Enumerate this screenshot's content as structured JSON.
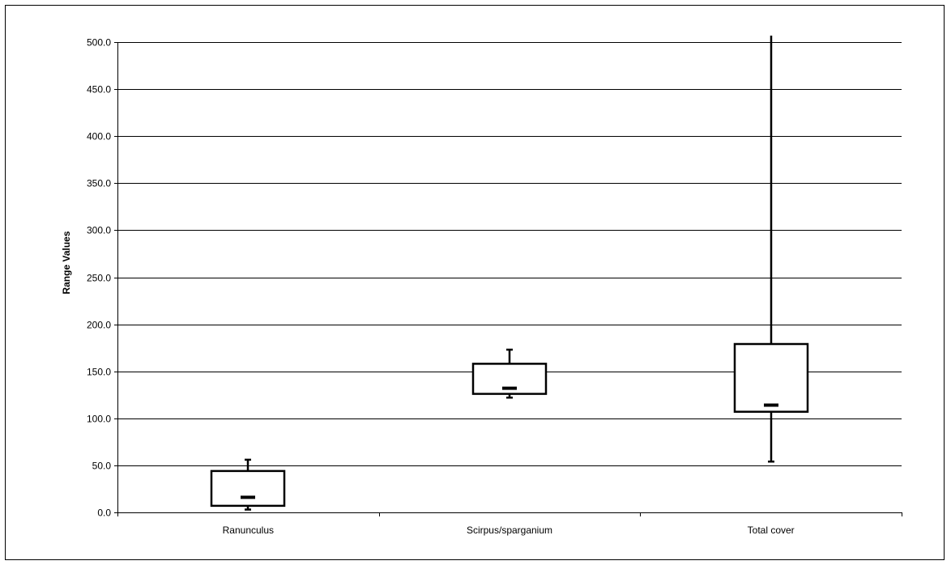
{
  "chart_data": {
    "type": "box",
    "title": "",
    "xlabel": "",
    "ylabel": "Range Values",
    "ylim": [
      0,
      500
    ],
    "yticks": [
      "0.0",
      "50.0",
      "100.0",
      "150.0",
      "200.0",
      "250.0",
      "300.0",
      "350.0",
      "400.0",
      "450.0",
      "500.0"
    ],
    "grid": true,
    "categories": [
      "Ranunculus",
      "Scirpus/sparganium",
      "Total cover"
    ],
    "boxes": [
      {
        "category": "Ranunculus",
        "min": 3,
        "q1": 7,
        "median": 16,
        "q3": 44,
        "max": 56
      },
      {
        "category": "Scirpus/sparganium",
        "min": 122,
        "q1": 126,
        "median": 132,
        "q3": 158,
        "max": 173
      },
      {
        "category": "Total cover",
        "min": 54,
        "q1": 107,
        "median": 114,
        "q3": 179,
        "max": 507
      }
    ],
    "colors": {
      "stroke": "#000000",
      "grid": "#000000",
      "background": "#ffffff"
    }
  }
}
